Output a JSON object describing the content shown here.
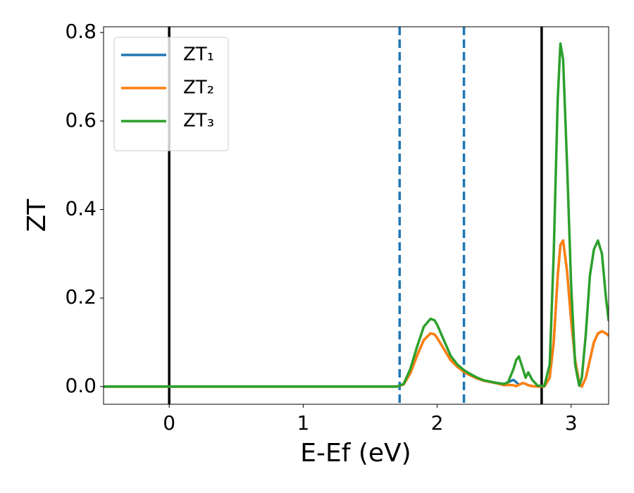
{
  "chart_data": {
    "type": "line",
    "x_label": "E-Ef (eV)",
    "y_label": "ZT",
    "xlim": [
      -0.49,
      3.28
    ],
    "ylim": [
      -0.04,
      0.813
    ],
    "xticks": [
      0,
      1,
      2,
      3
    ],
    "yticks": [
      {
        "value": 0,
        "label": "0.0"
      },
      0.2,
      0.4,
      0.6,
      0.8
    ],
    "legend": "upper left",
    "vlines": [
      {
        "x": 0,
        "color": "#000000",
        "style": "solid"
      },
      {
        "x": 1.72,
        "color": "#1f77b4",
        "style": "dashed"
      },
      {
        "x": 2.2,
        "color": "#1f77b4",
        "style": "dashed"
      },
      {
        "x": 2.78,
        "color": "#000000",
        "style": "solid"
      }
    ],
    "x": [
      -0.49,
      1.7,
      1.75,
      1.8,
      1.85,
      1.9,
      1.95,
      1.98,
      2.0,
      2.05,
      2.1,
      2.15,
      2.2,
      2.25,
      2.3,
      2.35,
      2.4,
      2.45,
      2.5,
      2.53,
      2.57,
      2.59,
      2.61,
      2.64,
      2.66,
      2.68,
      2.71,
      2.75,
      2.8,
      2.84,
      2.87,
      2.9,
      2.92,
      2.94,
      2.97,
      3.0,
      3.03,
      3.06,
      3.08,
      3.11,
      3.14,
      3.17,
      3.2,
      3.23,
      3.26,
      3.28
    ],
    "series": [
      {
        "name": "ZT₁",
        "color": "#1f77b4",
        "values": [
          0,
          0,
          0.005,
          0.03,
          0.07,
          0.105,
          0.12,
          0.118,
          0.11,
          0.085,
          0.06,
          0.045,
          0.033,
          0.025,
          0.018,
          0.013,
          0.01,
          0.007,
          0.004,
          0.01,
          0.015,
          0.01,
          0.004,
          0.008,
          0.006,
          0.003,
          0.001,
          0,
          0,
          0.02,
          0.1,
          0.25,
          0.32,
          0.33,
          0.26,
          0.15,
          0.06,
          0.005,
          0,
          0.02,
          0.06,
          0.1,
          0.12,
          0.125,
          0.12,
          0.115
        ]
      },
      {
        "name": "ZT₂",
        "color": "#ff7f0e",
        "values": [
          0,
          0,
          0.005,
          0.03,
          0.07,
          0.105,
          0.12,
          0.118,
          0.11,
          0.085,
          0.06,
          0.045,
          0.033,
          0.025,
          0.018,
          0.013,
          0.01,
          0.007,
          0.003,
          0.004,
          0.003,
          0.001,
          0.004,
          0.008,
          0.006,
          0.003,
          0.001,
          0,
          0,
          0.02,
          0.1,
          0.25,
          0.32,
          0.33,
          0.26,
          0.15,
          0.06,
          0.01,
          0,
          0.02,
          0.06,
          0.1,
          0.12,
          0.125,
          0.12,
          0.115
        ]
      },
      {
        "name": "ZT₃",
        "color": "#2ca02c",
        "values": [
          0,
          0,
          0.006,
          0.04,
          0.09,
          0.135,
          0.153,
          0.15,
          0.14,
          0.105,
          0.07,
          0.05,
          0.037,
          0.028,
          0.02,
          0.014,
          0.011,
          0.008,
          0.006,
          0.01,
          0.04,
          0.06,
          0.068,
          0.04,
          0.02,
          0.032,
          0.015,
          0.002,
          0.001,
          0.05,
          0.3,
          0.65,
          0.775,
          0.74,
          0.5,
          0.23,
          0.05,
          0.002,
          0.02,
          0.12,
          0.25,
          0.31,
          0.33,
          0.3,
          0.2,
          0.15
        ]
      }
    ]
  }
}
